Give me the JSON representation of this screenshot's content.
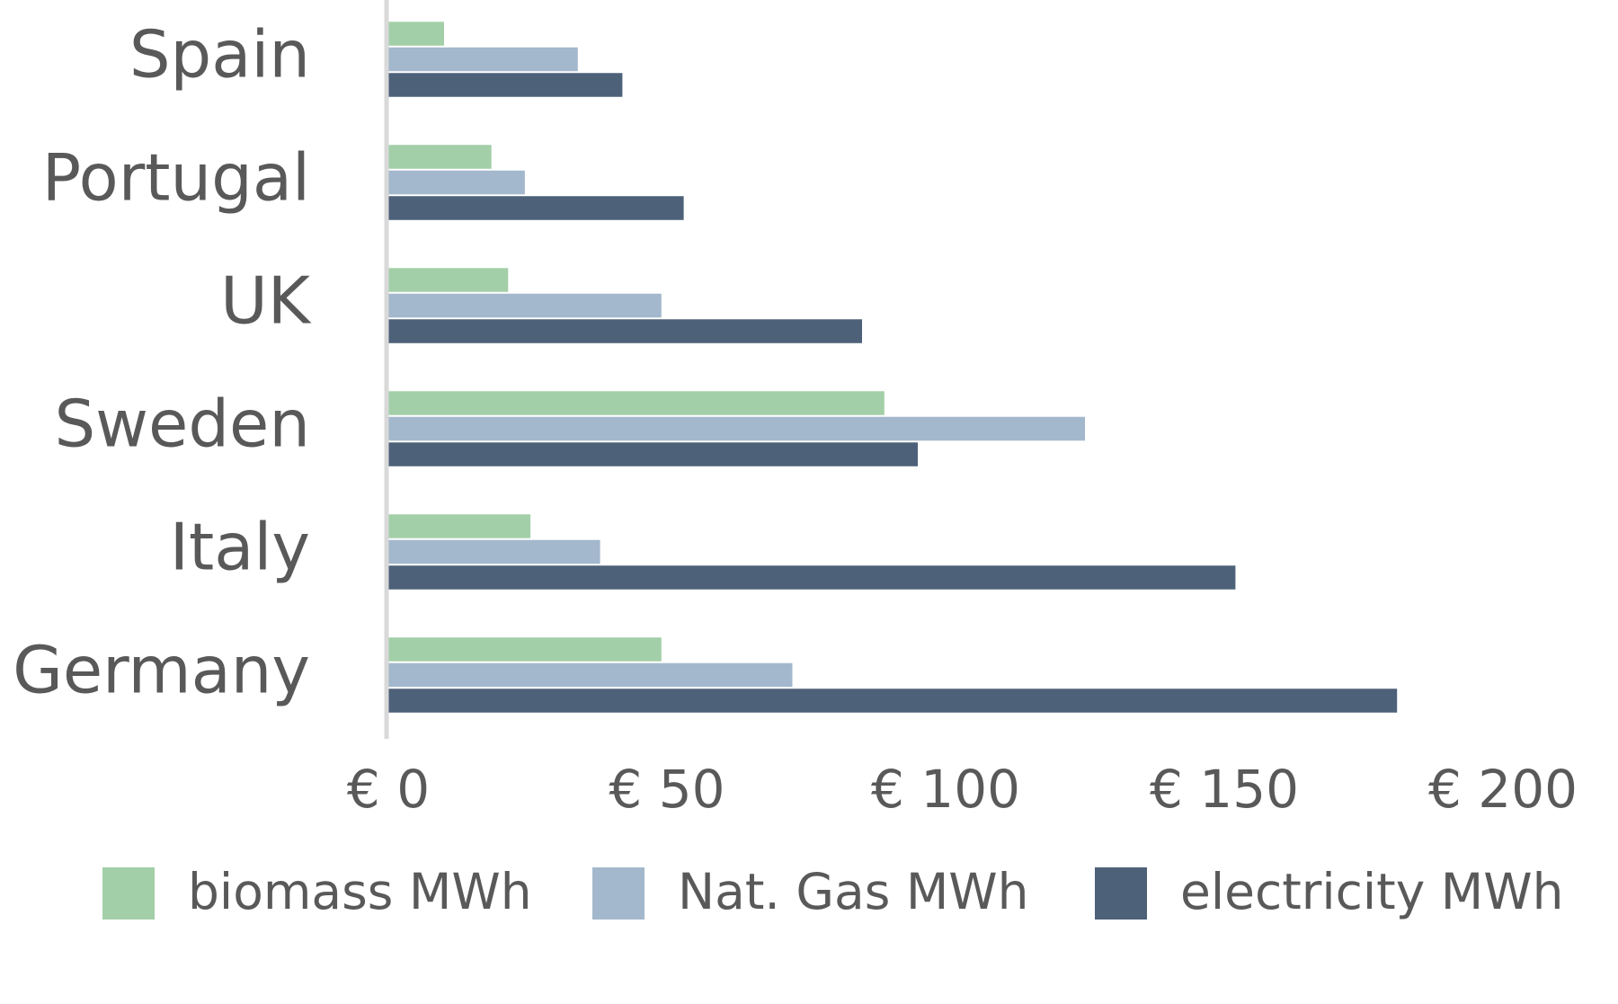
{
  "chart_data": {
    "type": "bar",
    "orientation": "horizontal",
    "categories": [
      "Spain",
      "Portugal",
      "UK",
      "Sweden",
      "Italy",
      "Germany"
    ],
    "series": [
      {
        "name": "biomass MWh",
        "color": "#a3cfa8",
        "values": [
          10,
          18.5,
          21.5,
          89,
          25.5,
          49
        ]
      },
      {
        "name": "Nat. Gas MWh",
        "color": "#a3b8cc",
        "values": [
          34,
          24.5,
          49,
          125,
          38,
          72.5
        ]
      },
      {
        "name": "electricity MWh",
        "color": "#4d6179",
        "values": [
          42,
          53,
          85,
          95,
          152,
          181
        ]
      }
    ],
    "xlim": [
      0,
      200
    ],
    "xticks": [
      {
        "value": 0,
        "label": "€ 0"
      },
      {
        "value": 50,
        "label": "€ 50"
      },
      {
        "value": 100,
        "label": "€ 100"
      },
      {
        "value": 150,
        "label": "€ 150"
      },
      {
        "value": 200,
        "label": "€ 200"
      }
    ],
    "legend": "bottom",
    "grid": false
  }
}
